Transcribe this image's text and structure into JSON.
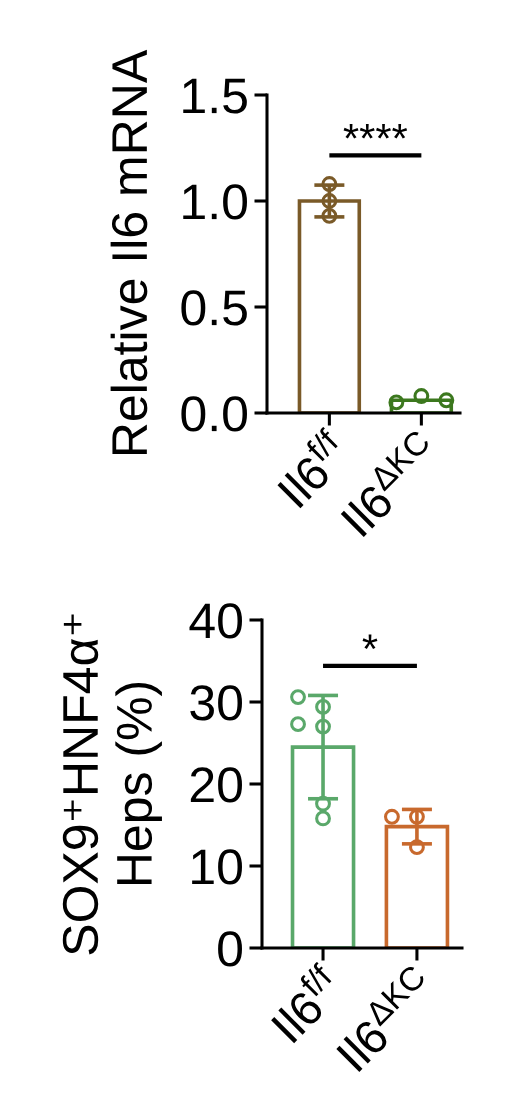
{
  "chart_data": [
    {
      "type": "bar",
      "ylabel": "Relative Il6 mRNA",
      "categories": [
        "Il6$^{f/f}$",
        "Il6$^{ΔKC}$"
      ],
      "ylim": [
        0,
        1.5
      ],
      "yticks": [
        {
          "value": 0,
          "label": "0.0"
        },
        0.5,
        {
          "value": 1,
          "label": "1.0"
        },
        1.5
      ],
      "marker": "circle",
      "annotations": [
        "****"
      ],
      "series": [
        {
          "values": [
            1.0,
            0.06
          ],
          "errors": [
            0.075,
            null
          ],
          "colors": [
            "#7a5a28",
            "#3c781e"
          ]
        },
        {
          "type": "scatter",
          "x": [
            "Il6$^{f/f}$",
            "Il6$^{f/f}$",
            "Il6$^{f/f}$",
            "Il6$^{ΔKC}$",
            "Il6$^{ΔKC}$",
            "Il6$^{ΔKC}$"
          ],
          "values": [
            1.08,
            1.0,
            0.93,
            0.08,
            0.05,
            0.06
          ],
          "colors": [
            "#7a5a28",
            "#7a5a28",
            "#7a5a28",
            "#3c781e",
            "#3c781e",
            "#3c781e"
          ]
        }
      ]
    },
    {
      "type": "bar",
      "ylabel": "SOX9⁺HNF4α⁺\nHeps (%)",
      "categories": [
        "Il6$^{f/f}$",
        "Il6$^{ΔKC}$"
      ],
      "ylim": [
        0,
        40
      ],
      "yticks": [
        0,
        10,
        20,
        30,
        40
      ],
      "marker": "circle",
      "annotations": [
        "*"
      ],
      "series": [
        {
          "values": [
            24.5,
            14.8
          ],
          "errors": [
            6.3,
            2.1
          ],
          "colors": [
            "#5aa86a",
            "#c8692d"
          ]
        },
        {
          "type": "scatter",
          "x": [
            "Il6$^{f/f}$",
            "Il6$^{f/f}$",
            "Il6$^{f/f}$",
            "Il6$^{f/f}$",
            "Il6$^{f/f}$",
            "Il6$^{f/f}$",
            "Il6$^{ΔKC}$",
            "Il6$^{ΔKC}$",
            "Il6$^{ΔKC}$"
          ],
          "values": [
            29.4,
            27.0,
            17.6,
            15.8,
            30.6,
            27.3,
            16.0,
            16.0,
            12.3
          ],
          "colors": [
            "#5aa86a",
            "#5aa86a",
            "#5aa86a",
            "#5aa86a",
            "#5aa86a",
            "#5aa86a",
            "#c8692d",
            "#c8692d",
            "#c8692d"
          ]
        }
      ]
    }
  ]
}
